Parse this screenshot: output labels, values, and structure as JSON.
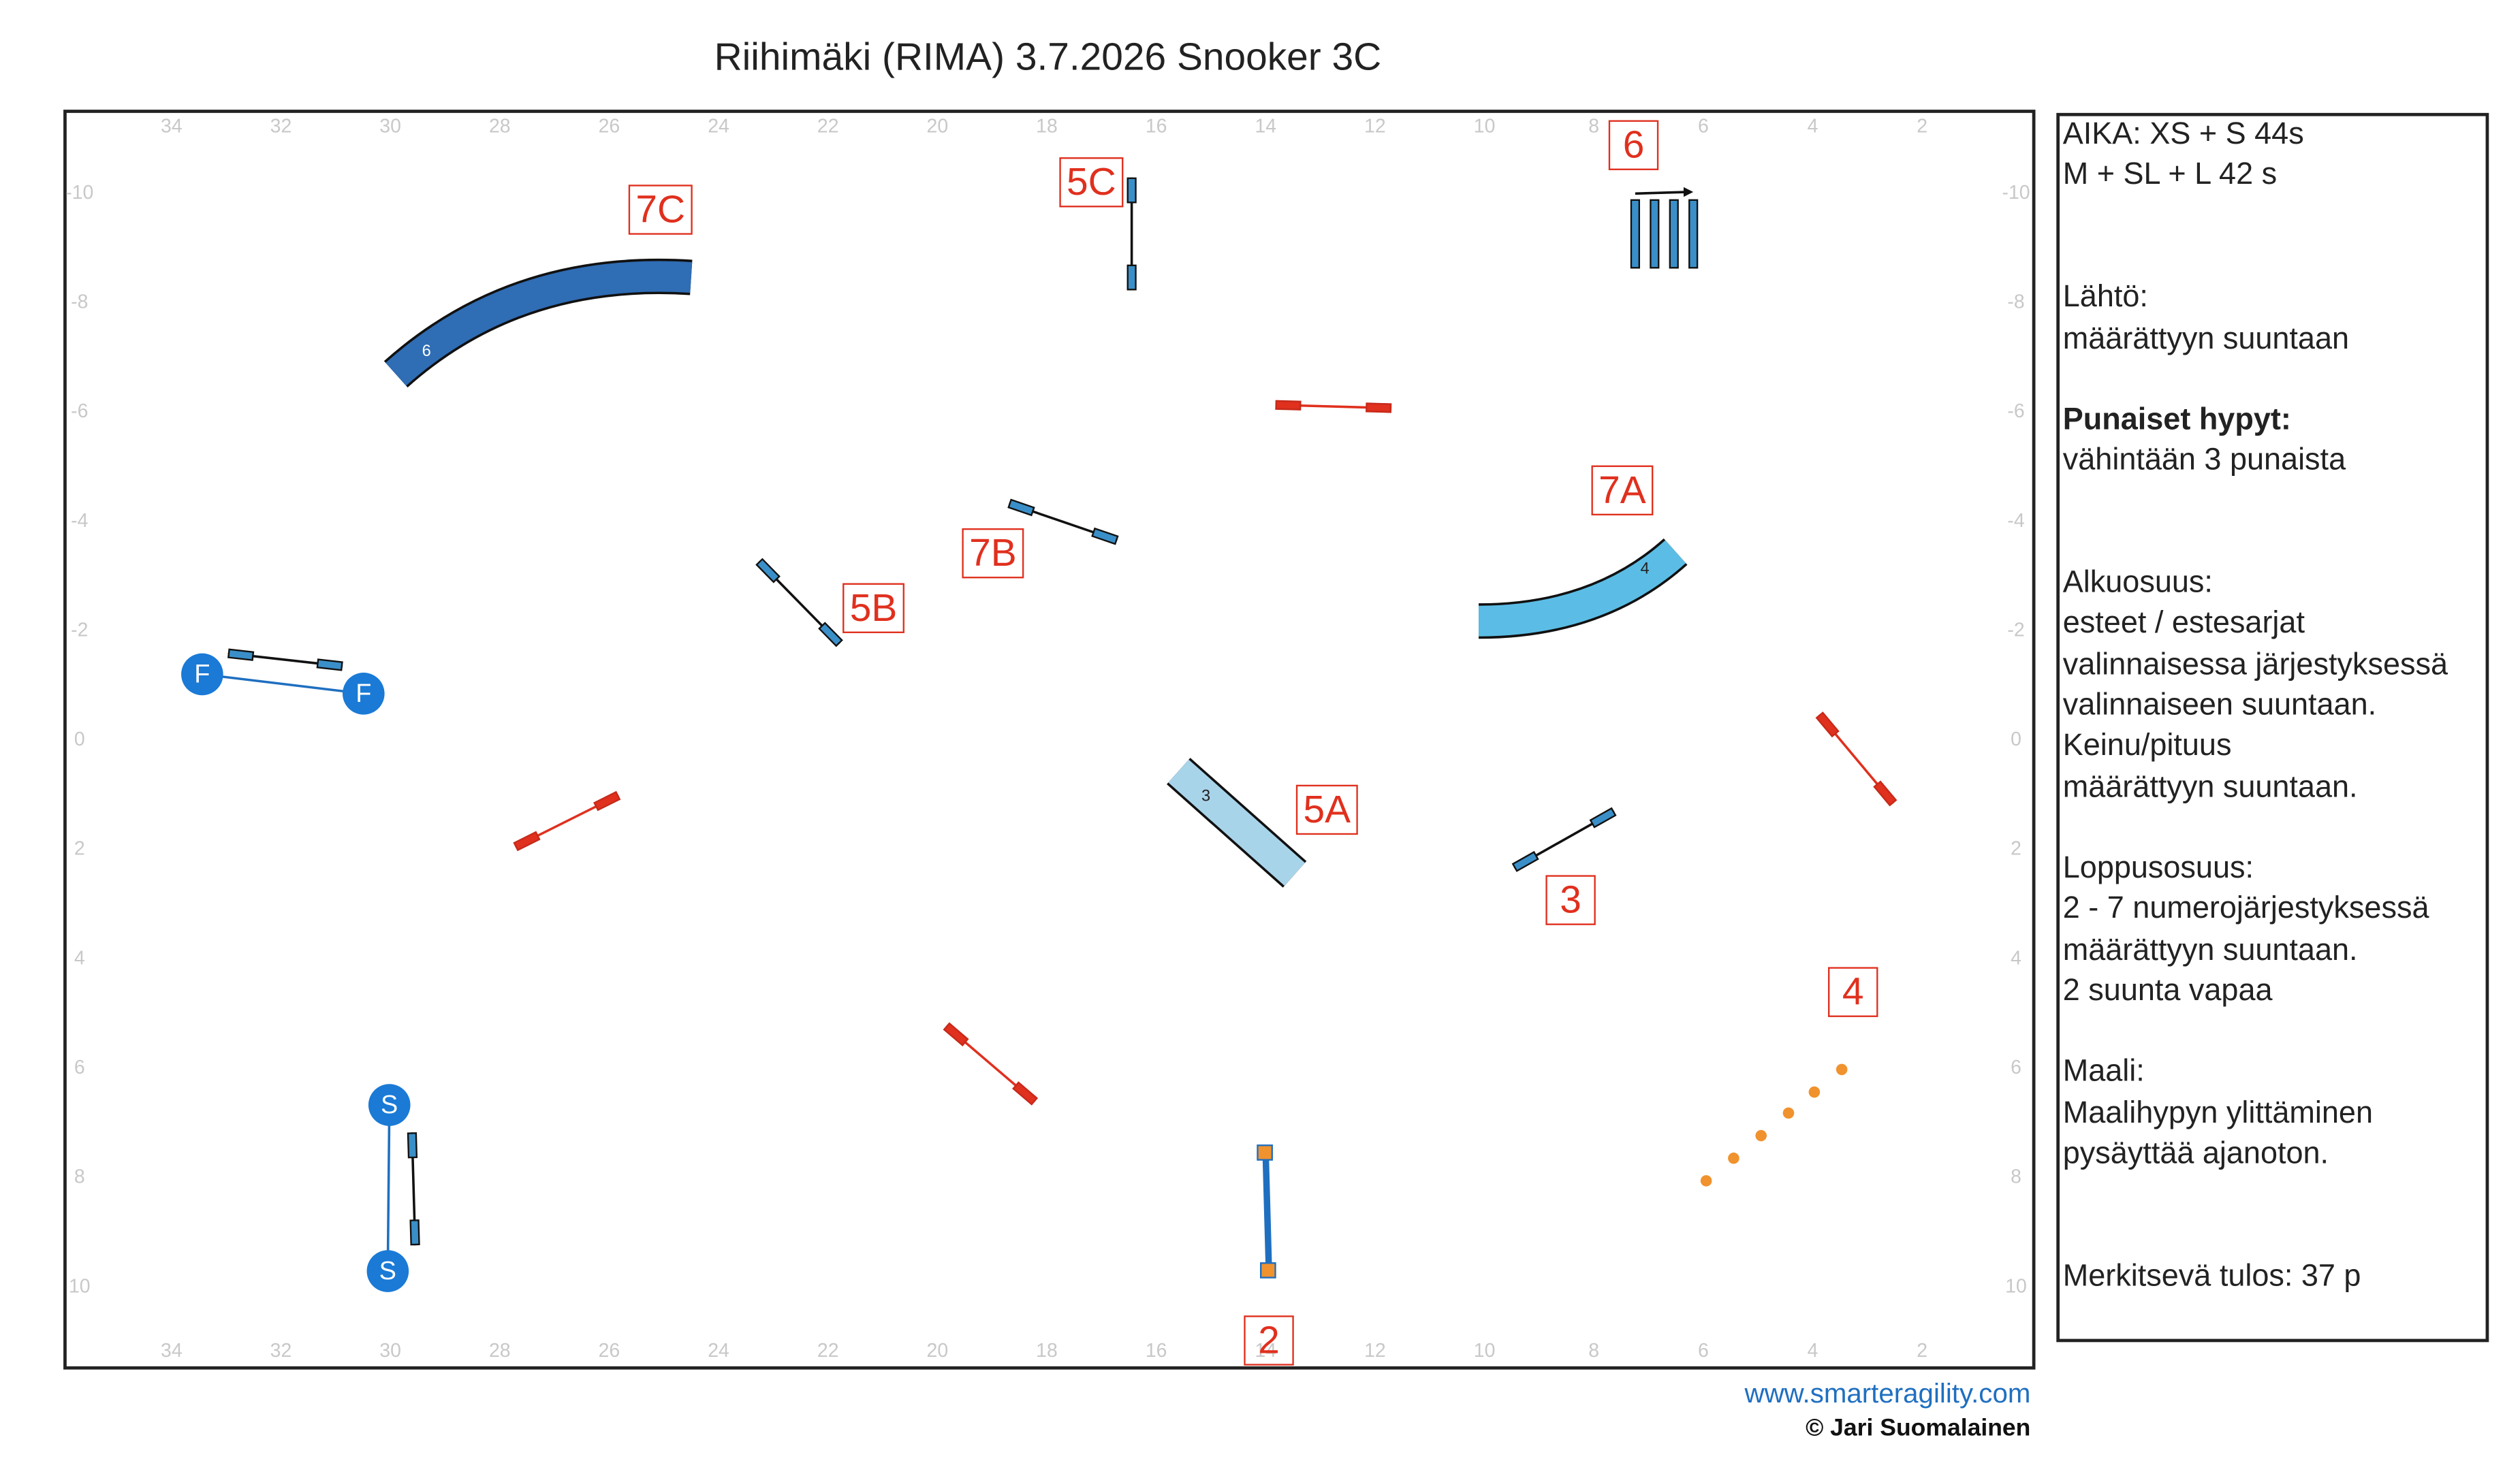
{
  "header": {
    "title": "Riihimäki (RIMA) 3.7.2026 Snooker 3C"
  },
  "grid": {
    "x_labels": [
      34,
      32,
      30,
      28,
      26,
      24,
      22,
      20,
      18,
      16,
      14,
      12,
      10,
      8,
      6,
      4,
      2
    ],
    "y_labels": [
      -10,
      -8,
      -6,
      -4,
      -2,
      0,
      2,
      4,
      6,
      8,
      10
    ]
  },
  "obstacles": {
    "labels": [
      "7C",
      "5C",
      "6",
      "7A",
      "7B",
      "5B",
      "5A",
      "3",
      "4",
      "2"
    ],
    "tunnel_numbers": [
      "6",
      "4",
      "3"
    ],
    "start": "S",
    "finish": "F"
  },
  "panel": {
    "lines": [
      "AIKA: XS + S 44s",
      "M + SL + L 42 s",
      "Lähtö:",
      "määrättyyn suuntaan",
      "Punaiset hypyt:",
      "vähintään 3 punaista",
      "Alkuosuus:",
      "esteet / estesarjat",
      "valinnaisessa järjestyksessä",
      "valinnaiseen suuntaan.",
      "Keinu/pituus",
      "määrättyyn suuntaan.",
      "Loppusosuus:",
      "2 - 7 numerojärjestyksessä",
      "määrättyyn suuntaan.",
      "2 suunta vapaa",
      "Maali:",
      "Maalihypyn ylittäminen",
      "pysäyttää ajanoton.",
      "Merkitsevä tulos: 37 p"
    ]
  },
  "footer": {
    "url": "www.smarteragility.com",
    "copyright": "© Jari Suomalainen"
  }
}
